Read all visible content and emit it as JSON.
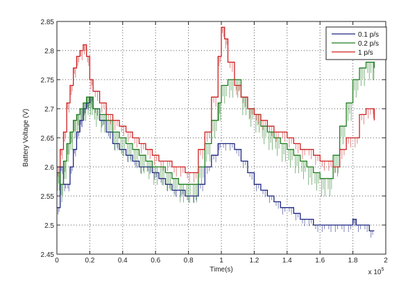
{
  "chart_data": {
    "type": "line",
    "title": "",
    "xlabel": "Time(s)",
    "ylabel": "Battery Voltage (V)",
    "x_multiplier": "x 10",
    "x_multiplier_exp": "5",
    "xlim": [
      0,
      2
    ],
    "ylim": [
      2.45,
      2.85
    ],
    "xticks": [
      0,
      0.2,
      0.4,
      0.6,
      0.8,
      1,
      1.2,
      1.4,
      1.6,
      1.8,
      2
    ],
    "xtick_labels": [
      "0",
      "0.2",
      "0.4",
      "0.6",
      "0.8",
      "1",
      "1.2",
      "1.4",
      "1.6",
      "1.8",
      "2"
    ],
    "yticks": [
      2.45,
      2.5,
      2.55,
      2.6,
      2.65,
      2.7,
      2.75,
      2.8,
      2.85
    ],
    "ytick_labels": [
      "2.45",
      "2.5",
      "2.55",
      "2.6",
      "2.65",
      "2.7",
      "2.75",
      "2.8",
      "2.85"
    ],
    "grid": true,
    "legend_position": "upper right",
    "series": [
      {
        "name": "0.1 p/s",
        "color": "#1a237e",
        "x": [
          0,
          0.02,
          0.04,
          0.06,
          0.08,
          0.1,
          0.12,
          0.14,
          0.16,
          0.18,
          0.2,
          0.22,
          0.26,
          0.3,
          0.34,
          0.38,
          0.42,
          0.46,
          0.5,
          0.54,
          0.58,
          0.62,
          0.66,
          0.7,
          0.74,
          0.78,
          0.82,
          0.86,
          0.9,
          0.94,
          0.98,
          1.0,
          1.04,
          1.08,
          1.12,
          1.16,
          1.2,
          1.24,
          1.28,
          1.32,
          1.36,
          1.4,
          1.44,
          1.48,
          1.52,
          1.56,
          1.6,
          1.64,
          1.68,
          1.72,
          1.76,
          1.8,
          1.82,
          1.86,
          1.9,
          1.93
        ],
        "values": [
          2.53,
          2.6,
          2.57,
          2.57,
          2.6,
          2.63,
          2.66,
          2.68,
          2.7,
          2.71,
          2.72,
          2.7,
          2.68,
          2.66,
          2.64,
          2.63,
          2.62,
          2.61,
          2.6,
          2.6,
          2.59,
          2.58,
          2.57,
          2.56,
          2.56,
          2.55,
          2.55,
          2.57,
          2.6,
          2.62,
          2.64,
          2.64,
          2.64,
          2.63,
          2.61,
          2.59,
          2.57,
          2.56,
          2.55,
          2.54,
          2.53,
          2.53,
          2.52,
          2.51,
          2.51,
          2.5,
          2.5,
          2.5,
          2.5,
          2.5,
          2.5,
          2.51,
          2.5,
          2.5,
          2.49,
          2.49
        ]
      },
      {
        "name": "0.2 p/s",
        "color": "#1b7a1b",
        "x": [
          0,
          0.02,
          0.04,
          0.06,
          0.08,
          0.1,
          0.12,
          0.14,
          0.16,
          0.18,
          0.2,
          0.22,
          0.26,
          0.3,
          0.34,
          0.38,
          0.42,
          0.46,
          0.5,
          0.54,
          0.58,
          0.62,
          0.66,
          0.7,
          0.74,
          0.78,
          0.82,
          0.86,
          0.9,
          0.94,
          0.98,
          1.0,
          1.04,
          1.08,
          1.12,
          1.16,
          1.2,
          1.24,
          1.28,
          1.32,
          1.36,
          1.4,
          1.44,
          1.48,
          1.52,
          1.56,
          1.6,
          1.64,
          1.68,
          1.72,
          1.76,
          1.8,
          1.84,
          1.88,
          1.92,
          1.93
        ],
        "values": [
          2.59,
          2.57,
          2.61,
          2.64,
          2.66,
          2.68,
          2.69,
          2.7,
          2.71,
          2.72,
          2.72,
          2.7,
          2.69,
          2.68,
          2.66,
          2.65,
          2.64,
          2.63,
          2.62,
          2.61,
          2.6,
          2.6,
          2.59,
          2.58,
          2.57,
          2.57,
          2.57,
          2.6,
          2.64,
          2.68,
          2.71,
          2.74,
          2.75,
          2.75,
          2.72,
          2.7,
          2.69,
          2.67,
          2.66,
          2.65,
          2.64,
          2.63,
          2.62,
          2.61,
          2.6,
          2.59,
          2.58,
          2.58,
          2.62,
          2.67,
          2.71,
          2.75,
          2.77,
          2.78,
          2.78,
          2.77
        ]
      },
      {
        "name": "1  p/s",
        "color": "#cc1f1f",
        "x": [
          0,
          0.02,
          0.04,
          0.06,
          0.08,
          0.1,
          0.12,
          0.14,
          0.16,
          0.18,
          0.2,
          0.22,
          0.26,
          0.3,
          0.34,
          0.38,
          0.42,
          0.46,
          0.5,
          0.54,
          0.58,
          0.62,
          0.66,
          0.7,
          0.74,
          0.78,
          0.82,
          0.86,
          0.9,
          0.94,
          0.98,
          1.0,
          1.02,
          1.04,
          1.08,
          1.12,
          1.16,
          1.2,
          1.24,
          1.28,
          1.32,
          1.36,
          1.4,
          1.44,
          1.48,
          1.52,
          1.56,
          1.6,
          1.64,
          1.68,
          1.72,
          1.76,
          1.8,
          1.84,
          1.88,
          1.92,
          1.93
        ],
        "values": [
          2.6,
          2.63,
          2.66,
          2.71,
          2.74,
          2.77,
          2.79,
          2.8,
          2.81,
          2.79,
          2.75,
          2.73,
          2.71,
          2.69,
          2.68,
          2.67,
          2.66,
          2.65,
          2.64,
          2.63,
          2.62,
          2.61,
          2.61,
          2.6,
          2.6,
          2.59,
          2.59,
          2.63,
          2.66,
          2.72,
          2.79,
          2.84,
          2.82,
          2.78,
          2.74,
          2.72,
          2.7,
          2.69,
          2.68,
          2.67,
          2.66,
          2.66,
          2.65,
          2.64,
          2.63,
          2.63,
          2.62,
          2.61,
          2.61,
          2.6,
          2.63,
          2.65,
          2.65,
          2.69,
          2.7,
          2.7,
          2.68
        ]
      }
    ]
  }
}
